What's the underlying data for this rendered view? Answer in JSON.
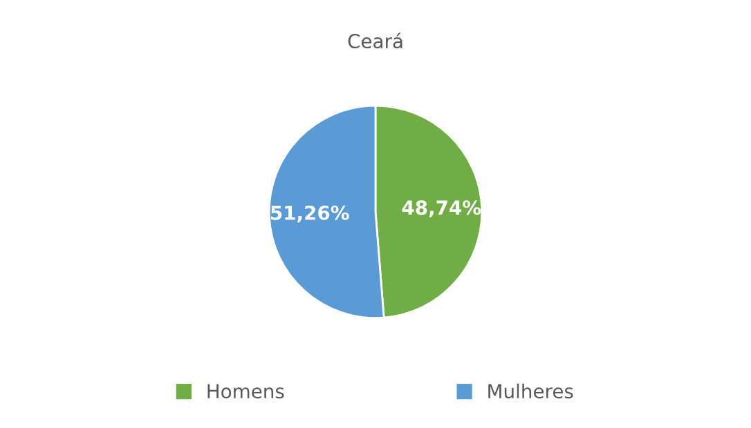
{
  "chart_data": {
    "type": "pie",
    "title": "Ceará",
    "categories": [
      "Homens",
      "Mulheres"
    ],
    "values": [
      48.74,
      51.26
    ],
    "colors": [
      "#70ad47",
      "#5b9bd5"
    ],
    "value_labels": [
      "48,74%",
      "51,26%"
    ],
    "legend": "bottom"
  }
}
